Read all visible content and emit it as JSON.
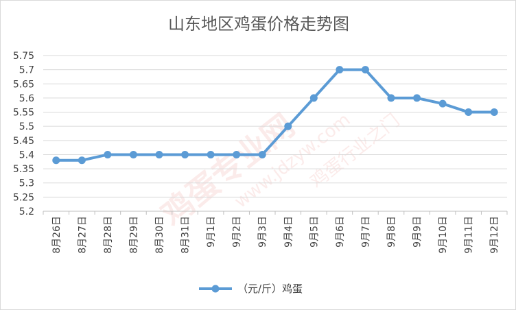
{
  "chart_data": {
    "type": "line",
    "title": "山东地区鸡蛋价格走势图",
    "categories": [
      "8月26日",
      "8月27日",
      "8月28日",
      "8月29日",
      "8月30日",
      "8月31日",
      "9月1日",
      "9月2日",
      "9月3日",
      "9月4日",
      "9月5日",
      "9月6日",
      "9月7日",
      "9月8日",
      "9月9日",
      "9月10日",
      "9月11日",
      "9月12日"
    ],
    "series": [
      {
        "name": "（元/斤）鸡蛋",
        "values": [
          5.38,
          5.38,
          5.4,
          5.4,
          5.4,
          5.4,
          5.4,
          5.4,
          5.4,
          5.5,
          5.6,
          5.7,
          5.7,
          5.6,
          5.6,
          5.58,
          5.55,
          5.55
        ],
        "color": "#5b9bd5"
      }
    ],
    "ylim": [
      5.2,
      5.75
    ],
    "yticks": [
      "5.2",
      "5.25",
      "5.3",
      "5.35",
      "5.4",
      "5.45",
      "5.5",
      "5.55",
      "5.6",
      "5.65",
      "5.7",
      "5.75"
    ],
    "grid": true,
    "legend": "bottom-center"
  },
  "watermark": {
    "brand": "鸡蛋专业网",
    "url": "www.jdzyw.com",
    "slogan": "鸡蛋行业之门"
  },
  "colors": {
    "line": "#5b9bd5",
    "grid": "#d9d9d9",
    "watermark": "#e0463a"
  }
}
